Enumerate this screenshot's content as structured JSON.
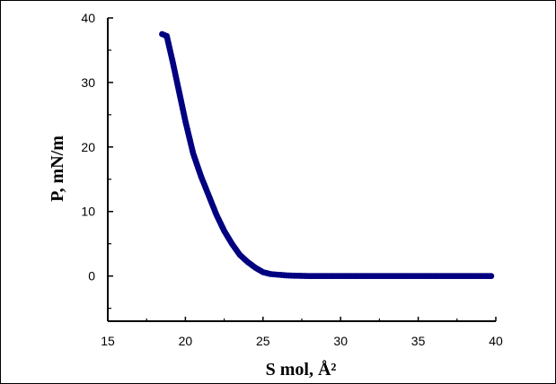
{
  "chart_data": {
    "type": "scatter",
    "xlabel": "S mol, Å²",
    "ylabel": "P, mN/m",
    "xlim": [
      15,
      40
    ],
    "ylim": [
      -7,
      40
    ],
    "xticks": [
      15,
      20,
      25,
      30,
      35,
      40
    ],
    "yticks": [
      0,
      10,
      20,
      30,
      40
    ],
    "grid": false,
    "marker_color": "#000080",
    "series": [
      {
        "x": [
          18.5,
          18.8,
          19.2,
          19.6,
          20.0,
          20.5,
          21.0,
          21.5,
          22.0,
          22.5,
          23.0,
          23.5,
          24.0,
          24.5,
          25.0,
          25.5,
          26.0,
          26.5,
          27.0,
          28.0,
          29.0,
          30.0,
          31.0,
          32.0,
          33.0,
          34.0,
          35.0,
          36.0,
          37.0,
          38.0,
          39.0,
          39.7
        ],
        "y": [
          37.5,
          37.2,
          33.0,
          28.5,
          24.0,
          19.0,
          15.5,
          12.5,
          9.5,
          7.0,
          5.0,
          3.3,
          2.2,
          1.3,
          0.6,
          0.3,
          0.2,
          0.1,
          0.05,
          0.0,
          0.0,
          0.0,
          0.0,
          0.0,
          0.0,
          0.0,
          0.0,
          0.0,
          0.0,
          0.0,
          0.0,
          0.0
        ]
      }
    ]
  }
}
